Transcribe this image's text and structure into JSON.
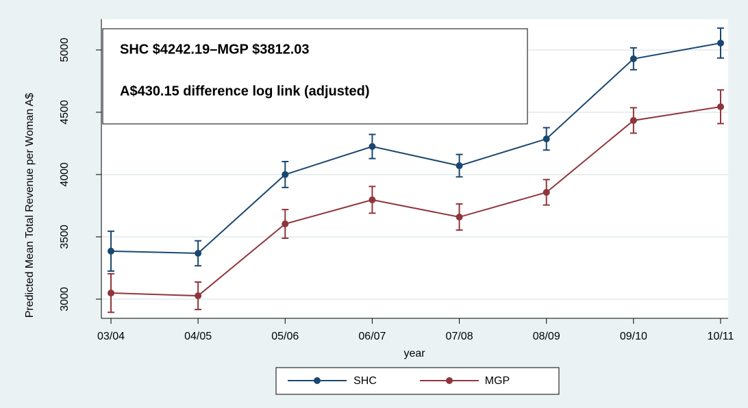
{
  "chart_data": {
    "type": "line",
    "annotations": [
      "SHC $4242.19–MGP $3812.03",
      "A$430.15 difference log link (adjusted)"
    ],
    "x_label": "year",
    "y_label": "Predicted Mean Total Revenue per Woman A$",
    "categories": [
      "03/04",
      "04/05",
      "05/06",
      "06/07",
      "07/08",
      "08/09",
      "09/10",
      "10/11"
    ],
    "series": [
      {
        "name": "SHC",
        "color": "#1a476f",
        "values": [
          3385,
          3368,
          4000,
          4225,
          4071,
          4286,
          4929,
          5055
        ],
        "errors": [
          160,
          100,
          104,
          97,
          90,
          90,
          88,
          120
        ]
      },
      {
        "name": "MGP",
        "color": "#90353b",
        "values": [
          3049,
          3027,
          3604,
          3797,
          3659,
          3857,
          4434,
          4544
        ],
        "errors": [
          155,
          110,
          115,
          107,
          105,
          102,
          102,
          135
        ]
      }
    ],
    "ylim": [
      2846,
      5247
    ],
    "yticks": [
      3000,
      3500,
      4000,
      4500,
      5000
    ],
    "grid": true,
    "legend": "bottom"
  }
}
